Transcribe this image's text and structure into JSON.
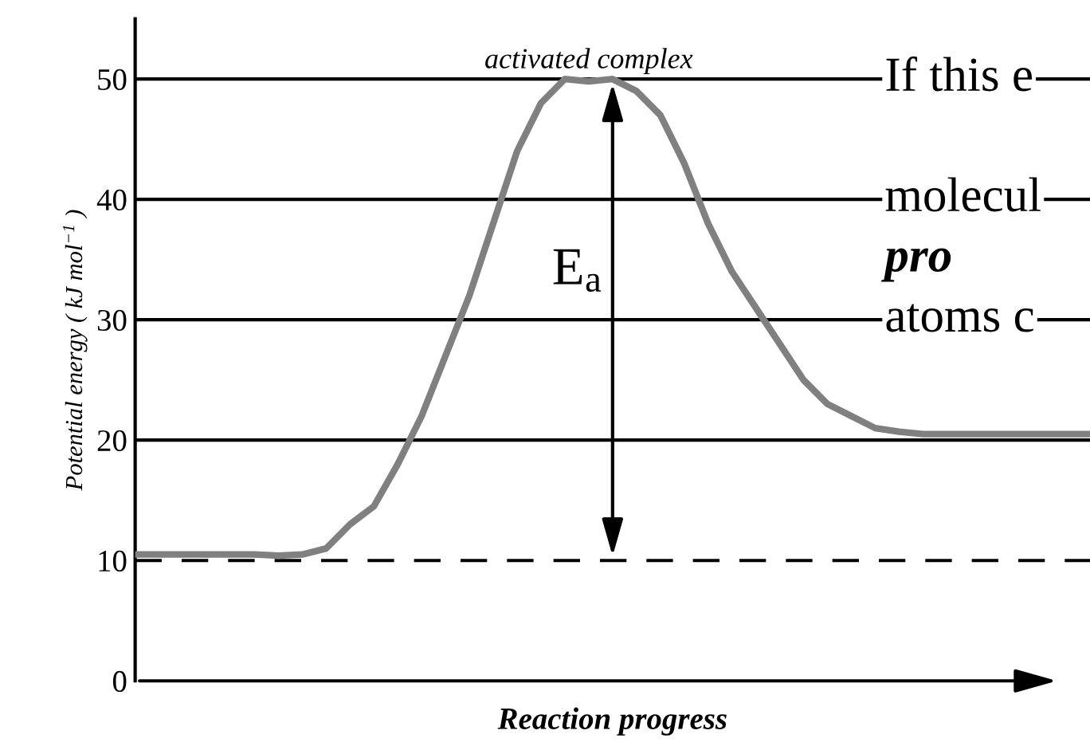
{
  "chart_data": {
    "type": "line",
    "xlabel": "Reaction progress",
    "ylabel": "Potential energy ( kJ mol$^{−1}$ )",
    "categories": [
      null,
      null,
      null,
      null,
      null,
      null,
      null,
      null,
      null,
      null,
      null,
      null,
      null,
      null,
      null,
      null,
      null,
      null,
      null,
      null,
      null,
      null,
      null,
      null,
      null,
      null,
      null,
      null,
      null,
      null,
      null,
      null,
      null,
      null,
      null,
      null,
      null,
      null,
      null,
      null,
      null
    ],
    "series": [
      {
        "color": "#808080",
        "values": [
          10.5,
          10.5,
          10.5,
          10.5,
          10.5,
          10.5,
          10.4,
          10.5,
          11,
          13,
          14.5,
          18,
          22,
          27,
          32,
          38,
          44,
          48,
          50,
          49.8,
          50,
          49,
          47,
          43,
          38,
          34,
          31,
          28,
          25,
          23,
          22,
          21,
          20.7,
          20.5,
          20.5,
          20.5,
          20.5,
          20.5,
          20.5,
          20.5,
          20.5
        ]
      }
    ],
    "ylim": [
      0,
      55
    ],
    "yticks": [
      0,
      10,
      20,
      30,
      40,
      50
    ],
    "ref_lines": [
      {
        "axis": "y",
        "value": 10,
        "line_style": "dashed",
        "color": "#000000"
      },
      {
        "axis": "y",
        "value": 20,
        "color": "#000000"
      },
      {
        "axis": "y",
        "value": 30,
        "color": "#000000"
      },
      {
        "axis": "y",
        "value": 40,
        "color": "#000000"
      },
      {
        "axis": "y",
        "value": 50,
        "color": "#000000"
      }
    ],
    "annotations": [
      "activated complex",
      "E$_{a}$",
      "If this e",
      "molecul",
      "pro",
      "atoms c"
    ],
    "grid": false,
    "legend": false,
    "marker": "none",
    "line_style": "solid"
  }
}
